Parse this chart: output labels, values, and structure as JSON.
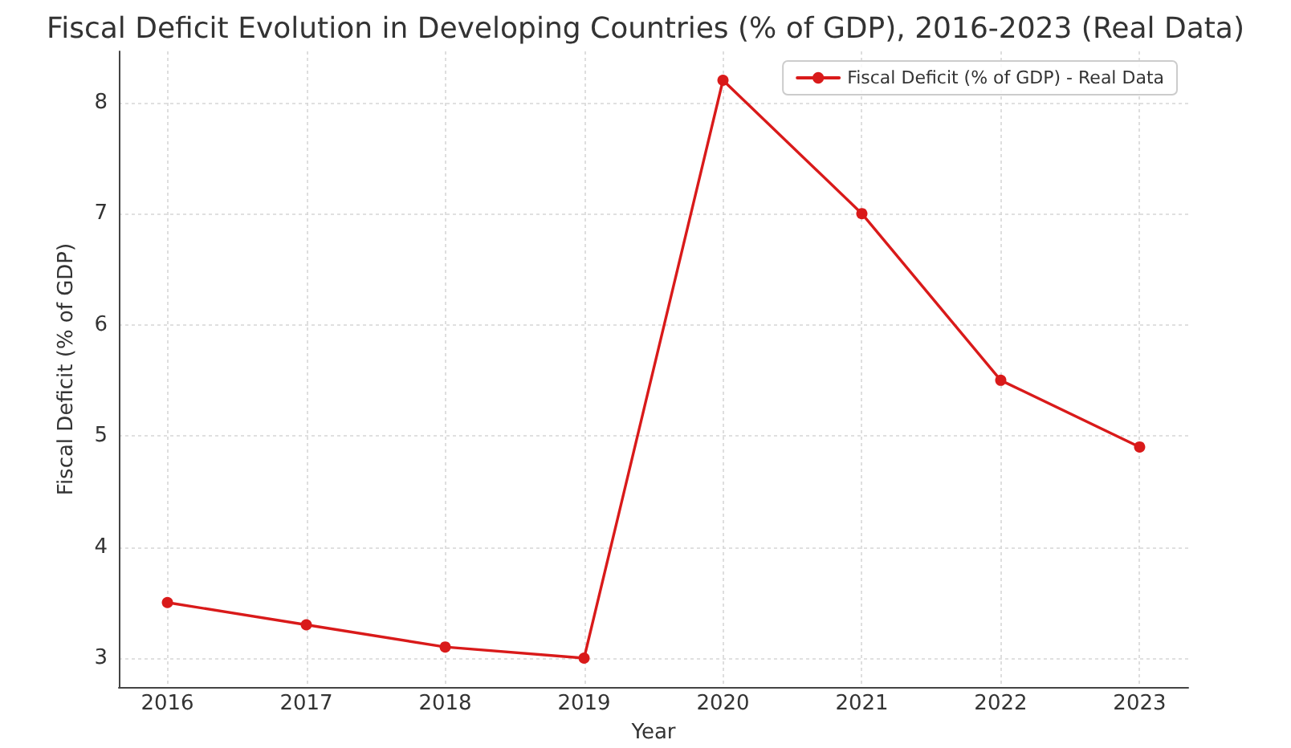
{
  "chart_data": {
    "type": "line",
    "title": "Fiscal Deficit Evolution in Developing Countries (% of GDP), 2016-2023 (Real Data)",
    "xlabel": "Year",
    "ylabel": "Fiscal Deficit (% of GDP)",
    "x": [
      2016,
      2017,
      2018,
      2019,
      2020,
      2021,
      2022,
      2023
    ],
    "series": [
      {
        "name": "Fiscal Deficit (% of GDP) - Real Data",
        "color": "#d91a1a",
        "values": [
          3.5,
          3.3,
          3.1,
          3.0,
          8.2,
          7.0,
          5.5,
          4.9
        ]
      }
    ],
    "xlim": [
      2015.65,
      2023.35
    ],
    "ylim": [
      2.74,
      8.46
    ],
    "xticks": [
      2016,
      2017,
      2018,
      2019,
      2020,
      2021,
      2022,
      2023
    ],
    "yticks": [
      3,
      4,
      5,
      6,
      7,
      8
    ],
    "grid": true,
    "legend": "top right",
    "marker": "circle",
    "line_style": "solid"
  }
}
